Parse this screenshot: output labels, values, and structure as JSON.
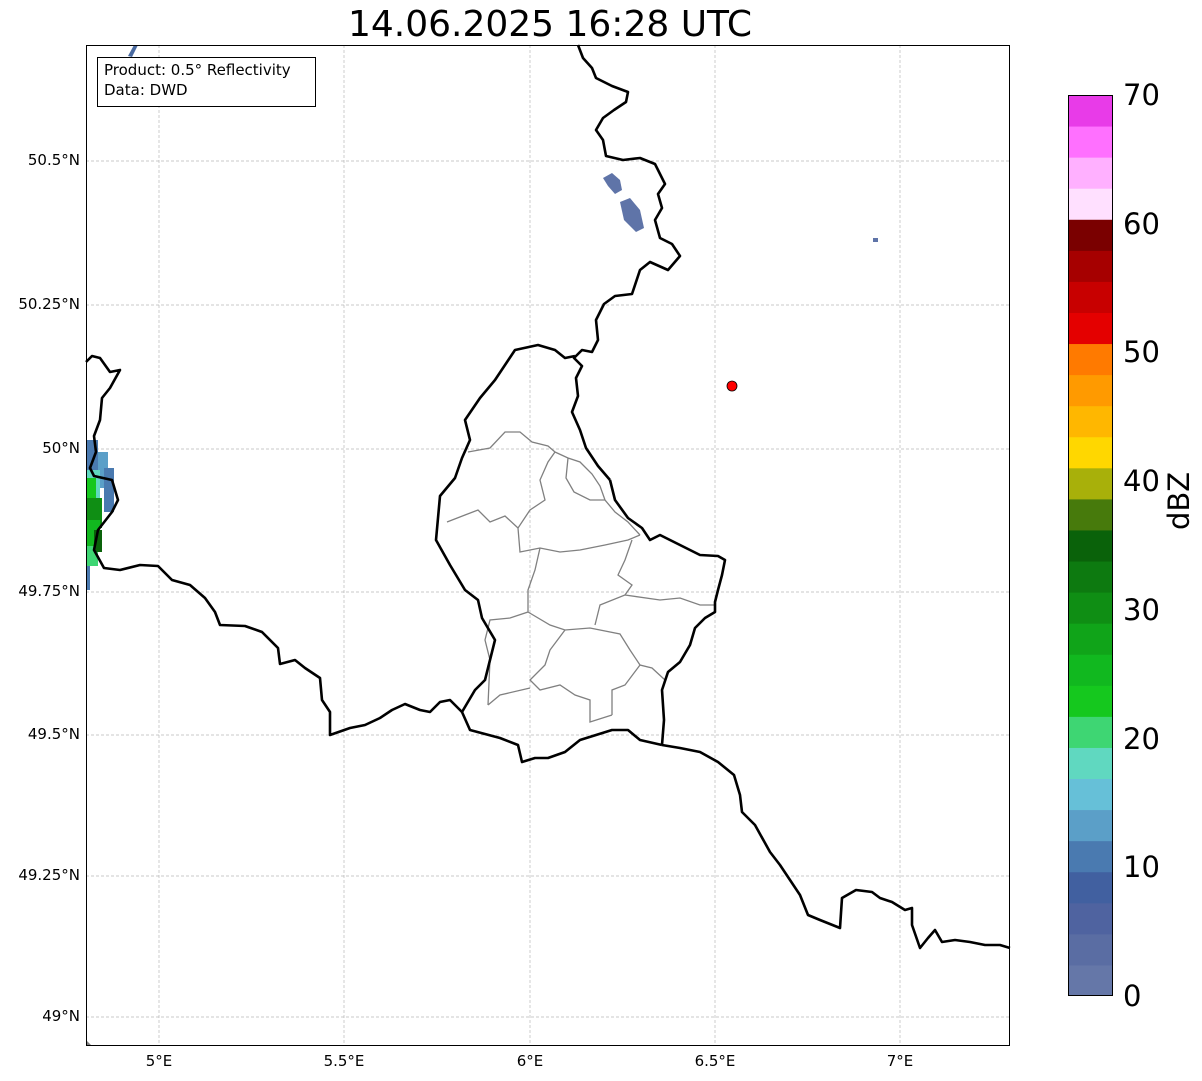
{
  "title": "14.06.2025 16:28 UTC",
  "info": {
    "product": "Product: 0.5° Reflectivity",
    "data": "Data: DWD"
  },
  "axes": {
    "y_ticks": [
      "50.5°N",
      "50.25°N",
      "50°N",
      "49.75°N",
      "49.5°N",
      "49.25°N",
      "49°N"
    ],
    "x_ticks": [
      "5°E",
      "5.5°E",
      "6°E",
      "6.5°E",
      "7°E"
    ]
  },
  "colorbar": {
    "label": "dBZ",
    "ticks": [
      "0",
      "10",
      "20",
      "30",
      "40",
      "50",
      "60",
      "70"
    ],
    "colors": [
      "#6577a8",
      "#5a6da3",
      "#4f63a0",
      "#4160a0",
      "#4a7ab0",
      "#5b9fc8",
      "#66c0d8",
      "#60d8c0",
      "#3ed673",
      "#15c81e",
      "#11b81f",
      "#10a419",
      "#0f8e14",
      "#0d7a10",
      "#0a620a",
      "#477a0c",
      "#a8b00a",
      "#ffd700",
      "#ffb700",
      "#ff9a00",
      "#ff7a00",
      "#e40000",
      "#c80000",
      "#a60000",
      "#7a0000",
      "#ffe0ff",
      "#ffb0ff",
      "#ff70ff",
      "#e83be8"
    ]
  },
  "marker": {
    "name": "station-marker",
    "color": "#ff0000"
  }
}
